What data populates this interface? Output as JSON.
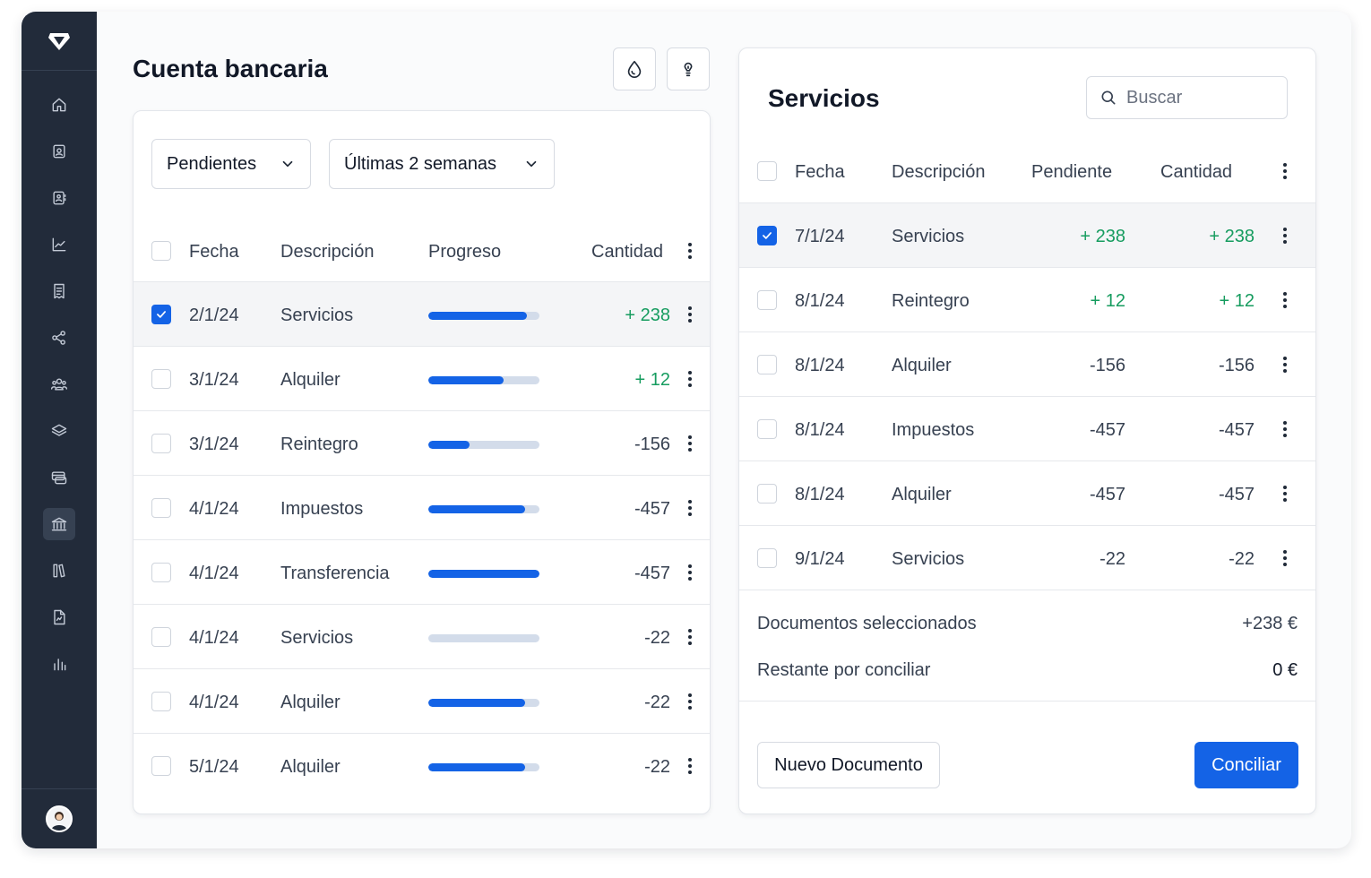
{
  "app": {
    "logo_icon": "diamond-logo-icon",
    "nav_icons": [
      "home-icon",
      "id-card-icon",
      "contact-book-icon",
      "chart-icon",
      "receipt-icon",
      "share-icon",
      "users-icon",
      "layers-icon",
      "cards-icon",
      "bank-icon",
      "library-icon",
      "document-icon",
      "bar-chart-icon"
    ],
    "active_nav": "bank-icon"
  },
  "bank": {
    "title": "Cuenta bancaria",
    "toolbar_icons": [
      "drop-icon",
      "lightbulb-icon"
    ],
    "filter_status": "Pendientes",
    "filter_period": "Últimas 2 semanas",
    "headers": {
      "date": "Fecha",
      "description": "Descripción",
      "progress": "Progreso",
      "amount": "Cantidad"
    },
    "rows": [
      {
        "date": "2/1/24",
        "description": "Servicios",
        "progress": 0.89,
        "amount": "+ 238",
        "positive": true,
        "checked": true
      },
      {
        "date": "3/1/24",
        "description": "Alquiler",
        "progress": 0.68,
        "amount": "+ 12",
        "positive": true,
        "checked": false
      },
      {
        "date": "3/1/24",
        "description": "Reintegro",
        "progress": 0.37,
        "amount": "-156",
        "positive": false,
        "checked": false
      },
      {
        "date": "4/1/24",
        "description": "Impuestos",
        "progress": 0.87,
        "amount": "-457",
        "positive": false,
        "checked": false
      },
      {
        "date": "4/1/24",
        "description": "Transferencia",
        "progress": 1.0,
        "amount": "-457",
        "positive": false,
        "checked": false
      },
      {
        "date": "4/1/24",
        "description": "Servicios",
        "progress": 0.0,
        "amount": "-22",
        "positive": false,
        "checked": false
      },
      {
        "date": "4/1/24",
        "description": "Alquiler",
        "progress": 0.87,
        "amount": "-22",
        "positive": false,
        "checked": false
      },
      {
        "date": "5/1/24",
        "description": "Alquiler",
        "progress": 0.87,
        "amount": "-22",
        "positive": false,
        "checked": false
      }
    ]
  },
  "services": {
    "title": "Servicios",
    "search_placeholder": "Buscar",
    "headers": {
      "date": "Fecha",
      "description": "Descripción",
      "pending": "Pendiente",
      "amount": "Cantidad"
    },
    "rows": [
      {
        "date": "7/1/24",
        "description": "Servicios",
        "pending": "+ 238",
        "amount": "+ 238",
        "positive": true,
        "checked": true
      },
      {
        "date": "8/1/24",
        "description": "Reintegro",
        "pending": "+ 12",
        "amount": "+ 12",
        "positive": true,
        "checked": false
      },
      {
        "date": "8/1/24",
        "description": "Alquiler",
        "pending": "-156",
        "amount": "-156",
        "positive": false,
        "checked": false
      },
      {
        "date": "8/1/24",
        "description": "Impuestos",
        "pending": "-457",
        "amount": "-457",
        "positive": false,
        "checked": false
      },
      {
        "date": "8/1/24",
        "description": "Alquiler",
        "pending": "-457",
        "amount": "-457",
        "positive": false,
        "checked": false
      },
      {
        "date": "9/1/24",
        "description": "Servicios",
        "pending": "-22",
        "amount": "-22",
        "positive": false,
        "checked": false
      }
    ],
    "selected_label": "Documentos seleccionados",
    "selected_value": "+238 €",
    "remaining_label": "Restante por conciliar",
    "remaining_value": "0 €",
    "new_document_label": "Nuevo Documento",
    "reconcile_label": "Conciliar"
  },
  "colors": {
    "accent": "#1463e6",
    "positive": "#169c5f",
    "sidebar": "#222b3a"
  }
}
